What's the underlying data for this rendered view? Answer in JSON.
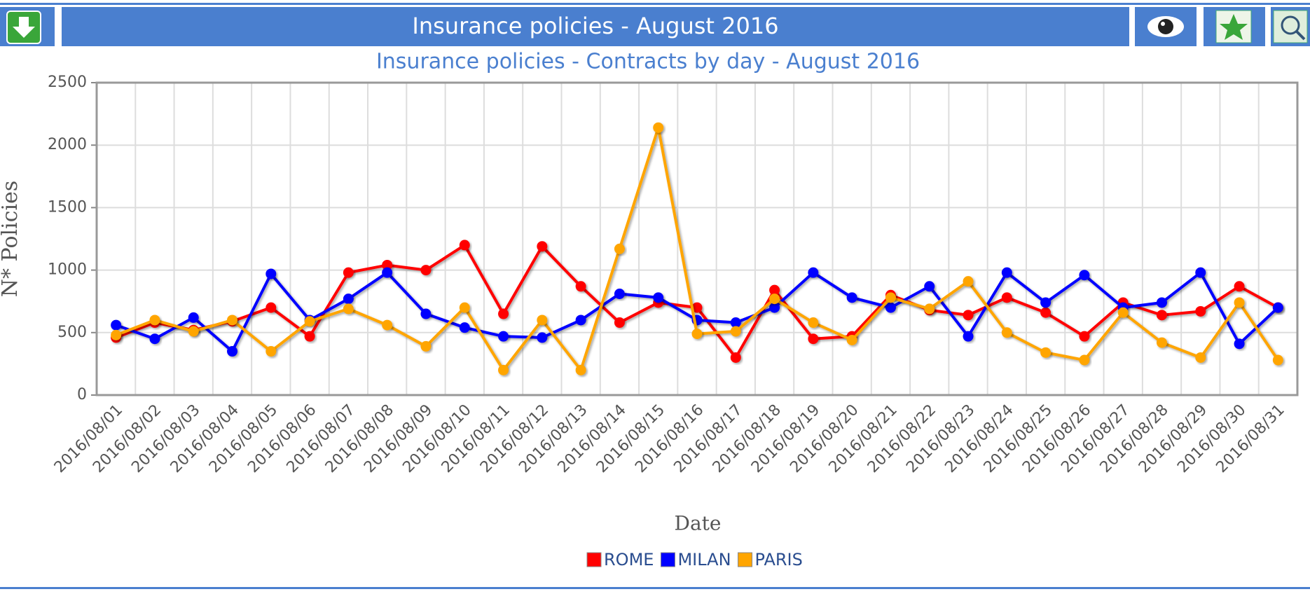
{
  "header": {
    "title": "Insurance policies - August 2016"
  },
  "chart_data": {
    "type": "line",
    "title": "Insurance policies - Contracts by day - August 2016",
    "x_label": "Date",
    "y_label": "N* Policies",
    "categories": [
      "2016/08/01",
      "2016/08/02",
      "2016/08/03",
      "2016/08/04",
      "2016/08/05",
      "2016/08/06",
      "2016/08/07",
      "2016/08/08",
      "2016/08/09",
      "2016/08/10",
      "2016/08/11",
      "2016/08/12",
      "2016/08/13",
      "2016/08/14",
      "2016/08/15",
      "2016/08/16",
      "2016/08/17",
      "2016/08/18",
      "2016/08/19",
      "2016/08/20",
      "2016/08/21",
      "2016/08/22",
      "2016/08/23",
      "2016/08/24",
      "2016/08/25",
      "2016/08/26",
      "2016/08/27",
      "2016/08/28",
      "2016/08/29",
      "2016/08/30",
      "2016/08/31"
    ],
    "series": [
      {
        "name": "ROME",
        "color": "#ff0000",
        "values": [
          460,
          580,
          520,
          590,
          700,
          470,
          980,
          1040,
          1000,
          1200,
          650,
          1190,
          870,
          580,
          740,
          700,
          300,
          840,
          450,
          470,
          800,
          680,
          640,
          780,
          660,
          470,
          740,
          640,
          670,
          870,
          700
        ]
      },
      {
        "name": "MILAN",
        "color": "#0000ff",
        "values": [
          560,
          450,
          620,
          350,
          970,
          600,
          770,
          980,
          650,
          540,
          470,
          460,
          600,
          810,
          780,
          600,
          580,
          700,
          980,
          780,
          700,
          870,
          470,
          980,
          740,
          960,
          700,
          740,
          980,
          410,
          700
        ]
      },
      {
        "name": "PARIS",
        "color": "#ffa500",
        "values": [
          480,
          600,
          510,
          600,
          350,
          590,
          690,
          560,
          390,
          700,
          200,
          600,
          200,
          1170,
          2140,
          490,
          510,
          770,
          580,
          440,
          780,
          690,
          910,
          500,
          340,
          280,
          660,
          420,
          300,
          740,
          280
        ]
      }
    ],
    "ylim": [
      0,
      2500
    ],
    "yticks": [
      0,
      500,
      1000,
      1500,
      2000,
      2500
    ],
    "grid": true,
    "legend": "bottom"
  }
}
